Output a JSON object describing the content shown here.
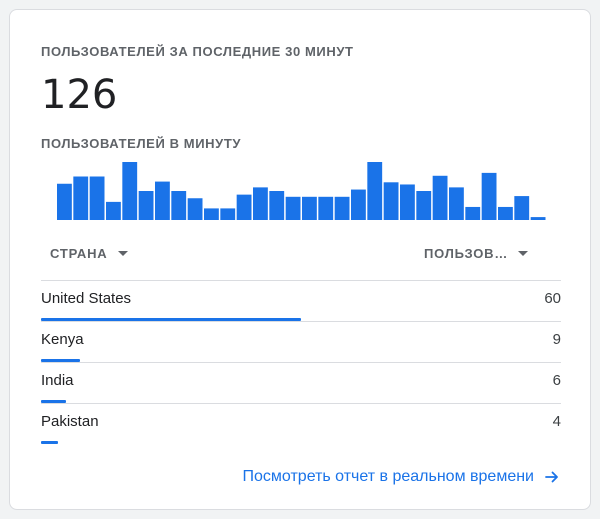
{
  "card": {
    "title": "ПОЛЬЗОВАТЕЛЕЙ ЗА ПОСЛЕДНИЕ 30 МИНУТ",
    "total_users": "126",
    "per_minute_label": "ПОЛЬЗОВАТЕЛЕЙ В МИНУТУ"
  },
  "chart_data": {
    "type": "bar",
    "values": [
      5,
      6,
      6,
      2.5,
      8,
      4,
      5.3,
      4,
      3,
      1.6,
      1.6,
      3.5,
      4.5,
      4,
      3.2,
      3.2,
      3.2,
      3.2,
      4.2,
      8,
      5.2,
      4.9,
      4,
      6.1,
      4.5,
      1.8,
      6.5,
      1.8,
      3.3,
      0.4
    ],
    "color": "#1a73e8",
    "grid": false,
    "ylim": [
      0,
      8
    ]
  },
  "table": {
    "col_country": "СТРАНА",
    "col_users": "ПОЛЬЗОВ…",
    "rows": [
      {
        "country": "United States",
        "users": "60",
        "share": 0.5
      },
      {
        "country": "Kenya",
        "users": "9",
        "share": 0.075
      },
      {
        "country": "India",
        "users": "6",
        "share": 0.048
      },
      {
        "country": "Pakistan",
        "users": "4",
        "share": 0.033
      }
    ]
  },
  "link": {
    "label": "Посмотреть отчет в реальном времени",
    "icon": "arrow-right-icon"
  }
}
